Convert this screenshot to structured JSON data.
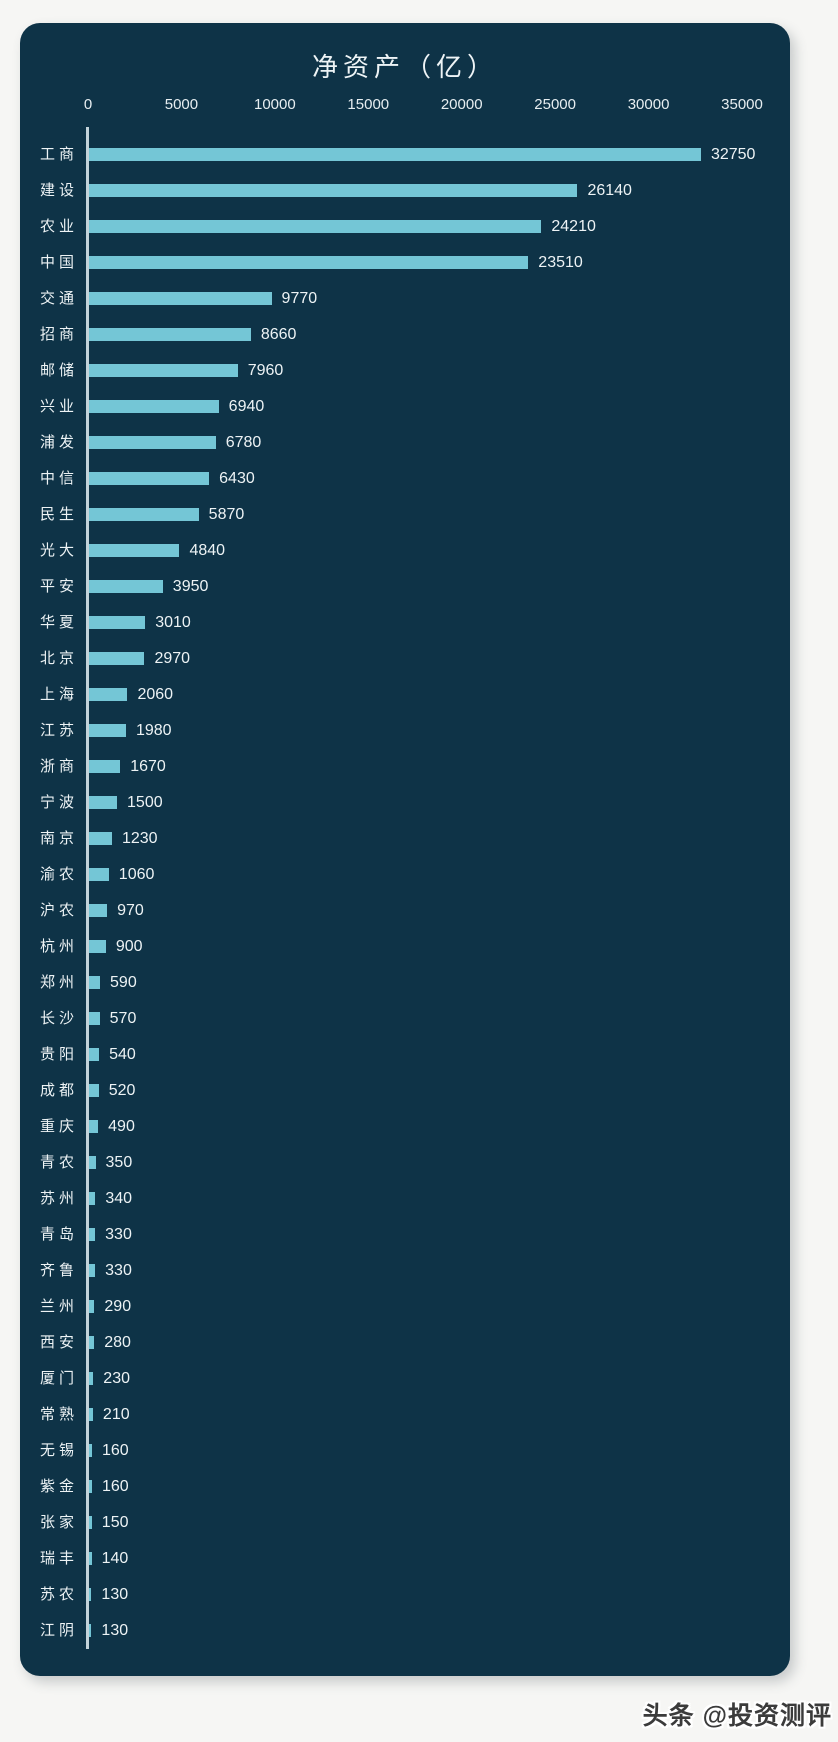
{
  "page": {
    "background": "#f6f6f4"
  },
  "card": {
    "background": "#0e3347"
  },
  "watermark": {
    "text": "头条 @投资测评"
  },
  "chart_data": {
    "type": "bar",
    "orientation": "horizontal",
    "title": "净资产（亿）",
    "xlabel": "",
    "ylabel": "",
    "xlim": [
      0,
      35000
    ],
    "grid": false,
    "legend": "none",
    "bar_color": "#74c6d6",
    "background_color": "#0e3347",
    "text_color": "#edf3f5",
    "axis": {
      "min": 0,
      "max": 35000,
      "ticks": [
        0,
        5000,
        10000,
        15000,
        20000,
        25000,
        30000,
        35000
      ]
    },
    "categories": [
      "工商",
      "建设",
      "农业",
      "中国",
      "交通",
      "招商",
      "邮储",
      "兴业",
      "浦发",
      "中信",
      "民生",
      "光大",
      "平安",
      "华夏",
      "北京",
      "上海",
      "江苏",
      "浙商",
      "宁波",
      "南京",
      "渝农",
      "沪农",
      "杭州",
      "郑州",
      "长沙",
      "贵阳",
      "成都",
      "重庆",
      "青农",
      "苏州",
      "青岛",
      "齐鲁",
      "兰州",
      "西安",
      "厦门",
      "常熟",
      "无锡",
      "紫金",
      "张家",
      "瑞丰",
      "苏农",
      "江阴"
    ],
    "values": [
      32750,
      26140,
      24210,
      23510,
      9770,
      8660,
      7960,
      6940,
      6780,
      6430,
      5870,
      4840,
      3950,
      3010,
      2970,
      2060,
      1980,
      1670,
      1500,
      1230,
      1060,
      970,
      900,
      590,
      570,
      540,
      520,
      490,
      350,
      340,
      330,
      330,
      290,
      280,
      230,
      210,
      160,
      160,
      150,
      140,
      130,
      130
    ]
  }
}
